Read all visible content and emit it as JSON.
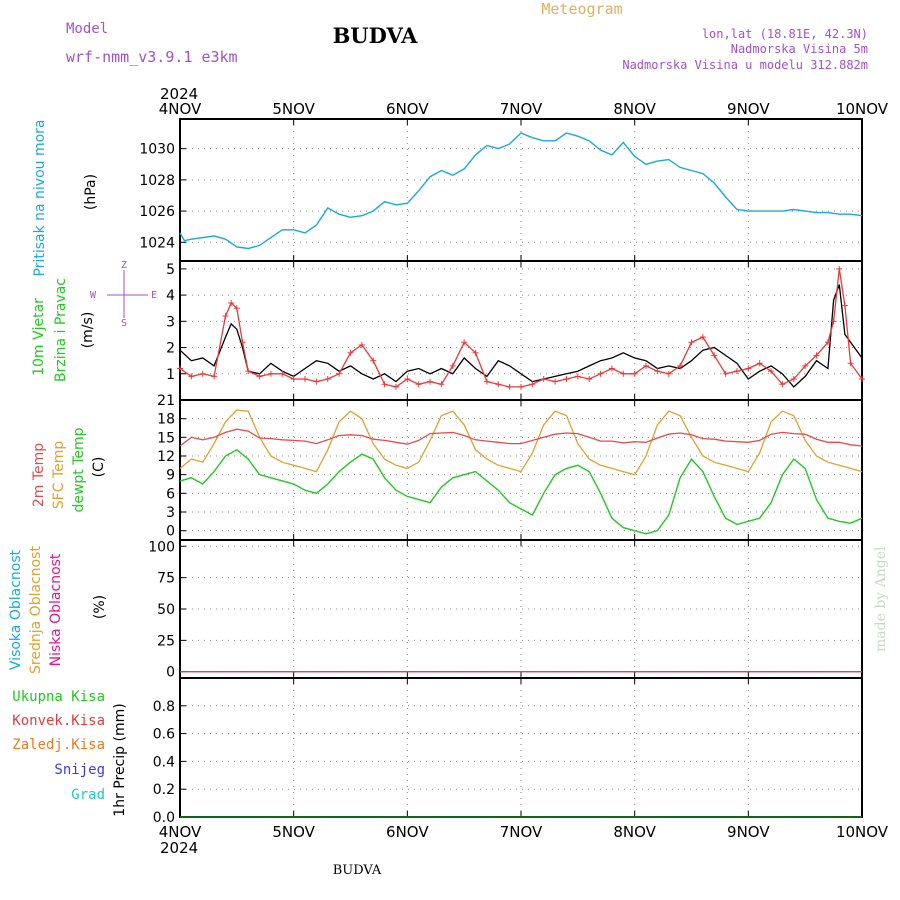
{
  "header": {
    "model_label": "Model",
    "model_name": "wrf-nmm_v3.9.1  e3km",
    "station": "BUDVA",
    "product": "Meteogram",
    "lonlat": "lon,lat (18.81E, 42.3N)",
    "elevation": "Nadmorska Visina 5m",
    "model_elevation": "Nadmorska Visina u modelu 312.882m",
    "footer_station": "BUDVA",
    "watermark": "made by Angel",
    "year_top": "2024",
    "year_bottom": "2024"
  },
  "colors": {
    "pressure": "#1aa7e0",
    "speed_model": "#000000",
    "speed_obs": "#e83a3a",
    "temp2m": "#e84a4a",
    "sfc_temp": "#e0a030",
    "dewpt": "#22c822",
    "high_cloud": "#1aa7e0",
    "mid_cloud": "#e0a030",
    "low_cloud": "#e0148c",
    "total_precip": "#22c822",
    "conv_precip": "#e83a3a",
    "frozen_precip": "#f07820",
    "snow": "#3a3ae0",
    "hail": "#20c8c8"
  },
  "chart_data": [
    {
      "type": "line",
      "name": "pressure",
      "ylabel": [
        "Pritisak na nivou mora",
        "(hPa)"
      ],
      "ylim": [
        1022.8,
        1031.9
      ],
      "yticks": [
        1024,
        1026,
        1028,
        1030
      ],
      "x_days": [
        "4NOV",
        "5NOV",
        "6NOV",
        "7NOV",
        "8NOV",
        "9NOV",
        "10NOV"
      ],
      "x": [
        0,
        0.04,
        0.1,
        0.2,
        0.3,
        0.4,
        0.5,
        0.6,
        0.7,
        0.8,
        0.9,
        1.0,
        1.1,
        1.2,
        1.3,
        1.4,
        1.5,
        1.6,
        1.7,
        1.8,
        1.9,
        2.0,
        2.1,
        2.2,
        2.3,
        2.4,
        2.5,
        2.6,
        2.7,
        2.8,
        2.9,
        3.0,
        3.1,
        3.2,
        3.3,
        3.4,
        3.5,
        3.6,
        3.7,
        3.8,
        3.9,
        4.0,
        4.1,
        4.2,
        4.3,
        4.4,
        4.5,
        4.6,
        4.7,
        4.8,
        4.9,
        5.0,
        5.1,
        5.2,
        5.3,
        5.4,
        5.5,
        5.6,
        5.7,
        5.8,
        5.9,
        6.0
      ],
      "values": [
        1024.6,
        1024.1,
        1024.2,
        1024.3,
        1024.4,
        1024.2,
        1023.7,
        1023.6,
        1023.8,
        1024.3,
        1024.8,
        1024.8,
        1024.6,
        1025.1,
        1026.2,
        1025.8,
        1025.6,
        1025.7,
        1026.0,
        1026.6,
        1026.4,
        1026.5,
        1027.3,
        1028.2,
        1028.6,
        1028.3,
        1028.7,
        1029.6,
        1030.2,
        1030.0,
        1030.3,
        1031.0,
        1030.7,
        1030.5,
        1030.5,
        1031.0,
        1030.8,
        1030.5,
        1029.9,
        1029.6,
        1030.4,
        1029.5,
        1029.0,
        1029.2,
        1029.3,
        1028.8,
        1028.6,
        1028.4,
        1027.8,
        1026.9,
        1026.1,
        1026.0,
        1026.0,
        1026.0,
        1026.0,
        1026.1,
        1026.0,
        1025.9,
        1025.9,
        1025.8,
        1025.8,
        1025.7
      ]
    },
    {
      "type": "line",
      "name": "wind",
      "ylabel": [
        "10m Vjetar",
        "Brzina i Pravac",
        "(m/s)"
      ],
      "compass": [
        "Z",
        "S",
        "E",
        "W"
      ],
      "ylim": [
        0,
        5.3
      ],
      "yticks": [
        1,
        2,
        3,
        4,
        5
      ],
      "x": [
        0,
        0.1,
        0.2,
        0.3,
        0.4,
        0.45,
        0.5,
        0.55,
        0.6,
        0.7,
        0.8,
        0.9,
        1.0,
        1.1,
        1.2,
        1.3,
        1.4,
        1.5,
        1.6,
        1.7,
        1.8,
        1.9,
        2.0,
        2.1,
        2.2,
        2.3,
        2.4,
        2.5,
        2.6,
        2.7,
        2.8,
        2.9,
        3.0,
        3.1,
        3.2,
        3.3,
        3.4,
        3.5,
        3.6,
        3.7,
        3.8,
        3.9,
        4.0,
        4.1,
        4.2,
        4.3,
        4.4,
        4.5,
        4.6,
        4.7,
        4.8,
        4.9,
        5.0,
        5.1,
        5.2,
        5.3,
        5.4,
        5.5,
        5.6,
        5.7,
        5.75,
        5.8,
        5.85,
        5.9,
        6.0
      ],
      "series": [
        {
          "key": "speed_model",
          "values": [
            1.9,
            1.5,
            1.6,
            1.3,
            2.4,
            2.9,
            2.7,
            2.0,
            1.1,
            1.0,
            1.4,
            1.1,
            0.9,
            1.2,
            1.5,
            1.4,
            1.1,
            1.3,
            1.0,
            0.8,
            1.0,
            0.7,
            1.1,
            1.2,
            1.0,
            1.2,
            1.0,
            1.6,
            1.2,
            0.9,
            1.5,
            1.3,
            1.0,
            0.7,
            0.8,
            0.9,
            1.0,
            1.1,
            1.3,
            1.5,
            1.6,
            1.8,
            1.6,
            1.5,
            1.2,
            1.3,
            1.2,
            1.5,
            1.9,
            2.0,
            1.7,
            1.4,
            0.8,
            1.1,
            1.3,
            1.0,
            0.5,
            0.9,
            1.5,
            1.2,
            3.8,
            4.4,
            2.5,
            2.2,
            1.6
          ]
        },
        {
          "key": "speed_obs",
          "values": [
            1.2,
            0.9,
            1.0,
            0.9,
            3.2,
            3.7,
            3.5,
            2.2,
            1.1,
            0.9,
            1.0,
            1.0,
            0.8,
            0.8,
            0.7,
            0.8,
            1.0,
            1.8,
            2.1,
            1.5,
            0.6,
            0.5,
            0.8,
            0.6,
            0.7,
            0.6,
            1.3,
            2.2,
            1.8,
            0.7,
            0.6,
            0.5,
            0.5,
            0.6,
            0.8,
            0.7,
            0.8,
            0.9,
            0.8,
            1.0,
            1.2,
            1.0,
            1.0,
            1.3,
            1.1,
            1.0,
            1.3,
            2.2,
            2.4,
            1.7,
            1.0,
            1.1,
            1.2,
            1.4,
            1.1,
            0.6,
            0.8,
            1.3,
            1.7,
            2.2,
            3.0,
            5.0,
            3.6,
            1.4,
            0.8
          ]
        }
      ]
    },
    {
      "type": "line",
      "name": "temperature",
      "ylabel": [
        "2m Temp",
        "SFC Temp",
        "dewpt Temp",
        "(C)"
      ],
      "ylim": [
        -1.5,
        21
      ],
      "yticks": [
        0,
        3,
        6,
        9,
        12,
        15,
        18,
        21
      ],
      "x": [
        0,
        0.1,
        0.2,
        0.3,
        0.4,
        0.5,
        0.6,
        0.7,
        0.8,
        0.9,
        1.0,
        1.1,
        1.2,
        1.3,
        1.4,
        1.5,
        1.6,
        1.7,
        1.8,
        1.9,
        2.0,
        2.1,
        2.2,
        2.3,
        2.4,
        2.5,
        2.6,
        2.7,
        2.8,
        2.9,
        3.0,
        3.1,
        3.2,
        3.3,
        3.4,
        3.5,
        3.6,
        3.7,
        3.8,
        3.9,
        4.0,
        4.1,
        4.2,
        4.3,
        4.4,
        4.5,
        4.6,
        4.7,
        4.8,
        4.9,
        5.0,
        5.1,
        5.2,
        5.3,
        5.4,
        5.5,
        5.6,
        5.7,
        5.8,
        5.9,
        6.0
      ],
      "series": [
        {
          "key": "temp2m",
          "values": [
            13.6,
            15.0,
            14.6,
            15.0,
            15.8,
            16.3,
            16.0,
            14.9,
            14.8,
            14.6,
            14.5,
            14.4,
            14.0,
            14.6,
            15.3,
            15.4,
            15.3,
            14.7,
            14.5,
            14.2,
            13.9,
            14.5,
            15.6,
            15.7,
            15.8,
            15.3,
            14.6,
            14.4,
            14.2,
            14.0,
            14.0,
            14.5,
            15.0,
            15.5,
            15.7,
            15.6,
            15.0,
            14.4,
            14.4,
            14.1,
            14.3,
            14.2,
            14.9,
            15.5,
            15.7,
            15.4,
            14.8,
            14.7,
            14.4,
            14.3,
            14.2,
            14.5,
            15.5,
            15.8,
            15.6,
            15.5,
            14.7,
            14.2,
            14.2,
            13.8,
            13.6
          ]
        },
        {
          "key": "sfc_temp",
          "values": [
            10.0,
            11.5,
            11.0,
            14.0,
            17.5,
            19.4,
            19.2,
            15.0,
            12.0,
            11.0,
            10.5,
            10.0,
            9.5,
            13.0,
            17.5,
            19.2,
            18.0,
            14.0,
            11.5,
            10.5,
            10.0,
            11.0,
            14.5,
            18.5,
            19.2,
            17.0,
            13.0,
            11.5,
            10.5,
            10.0,
            9.5,
            12.5,
            17.0,
            19.2,
            18.5,
            14.0,
            11.5,
            10.5,
            10.0,
            9.5,
            9.0,
            12.0,
            17.0,
            19.2,
            18.5,
            15.0,
            12.0,
            11.0,
            10.5,
            10.0,
            9.5,
            12.5,
            17.5,
            19.2,
            18.5,
            14.5,
            12.0,
            11.0,
            10.5,
            10.0,
            9.5
          ]
        },
        {
          "key": "dewpt",
          "values": [
            8.0,
            8.5,
            7.5,
            9.5,
            12.0,
            13.0,
            11.5,
            9.0,
            8.5,
            8.0,
            7.5,
            6.5,
            6.0,
            7.5,
            9.5,
            11.0,
            12.3,
            11.5,
            8.5,
            6.5,
            5.5,
            5.0,
            4.5,
            7.0,
            8.5,
            9.0,
            9.5,
            8.0,
            6.5,
            4.5,
            3.5,
            2.5,
            6.0,
            9.0,
            10.0,
            10.5,
            9.5,
            6.0,
            2.0,
            0.5,
            0.0,
            -0.5,
            0.0,
            2.5,
            8.5,
            11.5,
            9.5,
            5.5,
            2.0,
            1.0,
            1.5,
            2.0,
            4.5,
            9.0,
            11.5,
            10.0,
            5.0,
            2.0,
            1.5,
            1.2,
            2.0
          ]
        }
      ]
    },
    {
      "type": "line",
      "name": "cloud_cover",
      "ylabel": [
        "Visoka Oblacnost",
        "Srednja Oblacnost",
        "Niska Oblacnost",
        "(%)"
      ],
      "ylim": [
        -5,
        105
      ],
      "yticks": [
        0,
        25,
        50,
        75,
        100
      ],
      "series": [
        {
          "key": "high_cloud",
          "values": [
            0,
            0
          ]
        },
        {
          "key": "mid_cloud",
          "values": [
            0,
            0
          ]
        },
        {
          "key": "low_cloud",
          "values": [
            0,
            0
          ]
        }
      ]
    },
    {
      "type": "line",
      "name": "precipitation",
      "ylabel": "1hr Precip (mm)",
      "legend": [
        "Ukupna Kisa",
        "Konvek.Kisa",
        "Zaledj.Kisa",
        "Snijeg",
        "Grad"
      ],
      "ylim": [
        0,
        1.0
      ],
      "yticks": [
        0,
        0.2,
        0.4,
        0.6,
        0.8
      ],
      "values": [
        0,
        0
      ]
    }
  ]
}
